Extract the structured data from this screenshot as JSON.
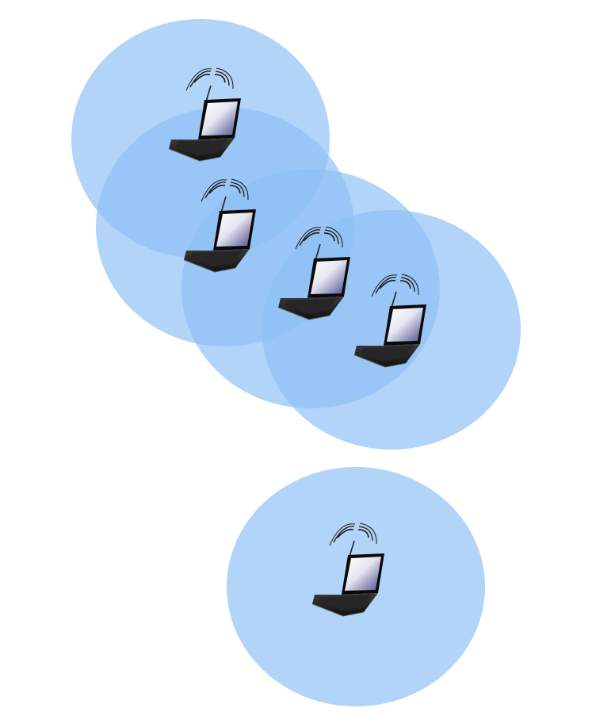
{
  "diagram": {
    "background_color": "#ffffff",
    "range_color": "#8ec0f5",
    "node_icon": "wireless-laptop-icon",
    "nodes": [
      {
        "id": "node-1",
        "icon": "wireless-laptop-icon",
        "connected": true
      },
      {
        "id": "node-2",
        "icon": "wireless-laptop-icon",
        "connected": true
      },
      {
        "id": "node-3",
        "icon": "wireless-laptop-icon",
        "connected": true
      },
      {
        "id": "node-4",
        "icon": "wireless-laptop-icon",
        "connected": true
      },
      {
        "id": "node-5",
        "icon": "wireless-laptop-icon",
        "connected": false
      }
    ]
  }
}
